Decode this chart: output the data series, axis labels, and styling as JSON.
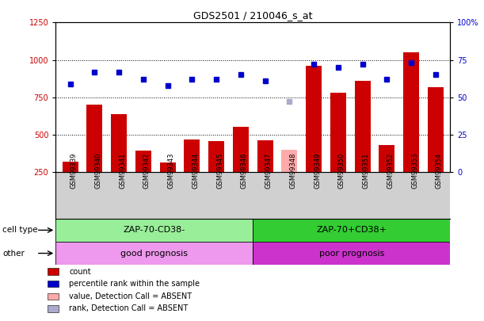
{
  "title": "GDS2501 / 210046_s_at",
  "samples": [
    "GSM99339",
    "GSM99340",
    "GSM99341",
    "GSM99342",
    "GSM99343",
    "GSM99344",
    "GSM99345",
    "GSM99346",
    "GSM99347",
    "GSM99348",
    "GSM99349",
    "GSM99350",
    "GSM99351",
    "GSM99352",
    "GSM99353",
    "GSM99354"
  ],
  "bar_values": [
    320,
    700,
    635,
    395,
    315,
    470,
    455,
    555,
    460,
    null,
    960,
    780,
    860,
    430,
    1050,
    820
  ],
  "absent_bar_values": [
    null,
    null,
    null,
    null,
    null,
    null,
    null,
    null,
    null,
    400,
    null,
    null,
    null,
    null,
    null,
    null
  ],
  "dot_values": [
    59,
    67,
    67,
    62,
    58,
    62,
    62,
    65,
    61,
    null,
    72,
    70,
    72,
    62,
    73,
    65
  ],
  "absent_dot_values": [
    null,
    null,
    null,
    null,
    null,
    null,
    null,
    null,
    null,
    47,
    null,
    null,
    null,
    null,
    null,
    null
  ],
  "bar_color": "#cc0000",
  "absent_bar_color": "#ffaaaa",
  "dot_color": "#0000cc",
  "absent_dot_color": "#aaaacc",
  "ylim_left": [
    250,
    1250
  ],
  "ylim_right": [
    0,
    100
  ],
  "yticks_left": [
    250,
    500,
    750,
    1000,
    1250
  ],
  "yticks_right": [
    0,
    25,
    50,
    75,
    100
  ],
  "ytick_labels_right": [
    "0",
    "25",
    "50",
    "75",
    "100%"
  ],
  "grid_values": [
    500,
    750,
    1000
  ],
  "cell_type_groups": [
    {
      "label": "ZAP-70-CD38-",
      "start": 0,
      "end": 8,
      "color": "#99ee99"
    },
    {
      "label": "ZAP-70+CD38+",
      "start": 8,
      "end": 16,
      "color": "#33cc33"
    }
  ],
  "other_groups": [
    {
      "label": "good prognosis",
      "start": 0,
      "end": 8,
      "color": "#ee99ee"
    },
    {
      "label": "poor prognosis",
      "start": 8,
      "end": 16,
      "color": "#cc33cc"
    }
  ],
  "legend_items": [
    {
      "color": "#cc0000",
      "label": "count"
    },
    {
      "color": "#0000cc",
      "label": "percentile rank within the sample"
    },
    {
      "color": "#ffaaaa",
      "label": "value, Detection Call = ABSENT"
    },
    {
      "color": "#aaaacc",
      "label": "rank, Detection Call = ABSENT"
    }
  ],
  "xtick_bg_color": "#d0d0d0",
  "plot_bg_color": "#ffffff"
}
